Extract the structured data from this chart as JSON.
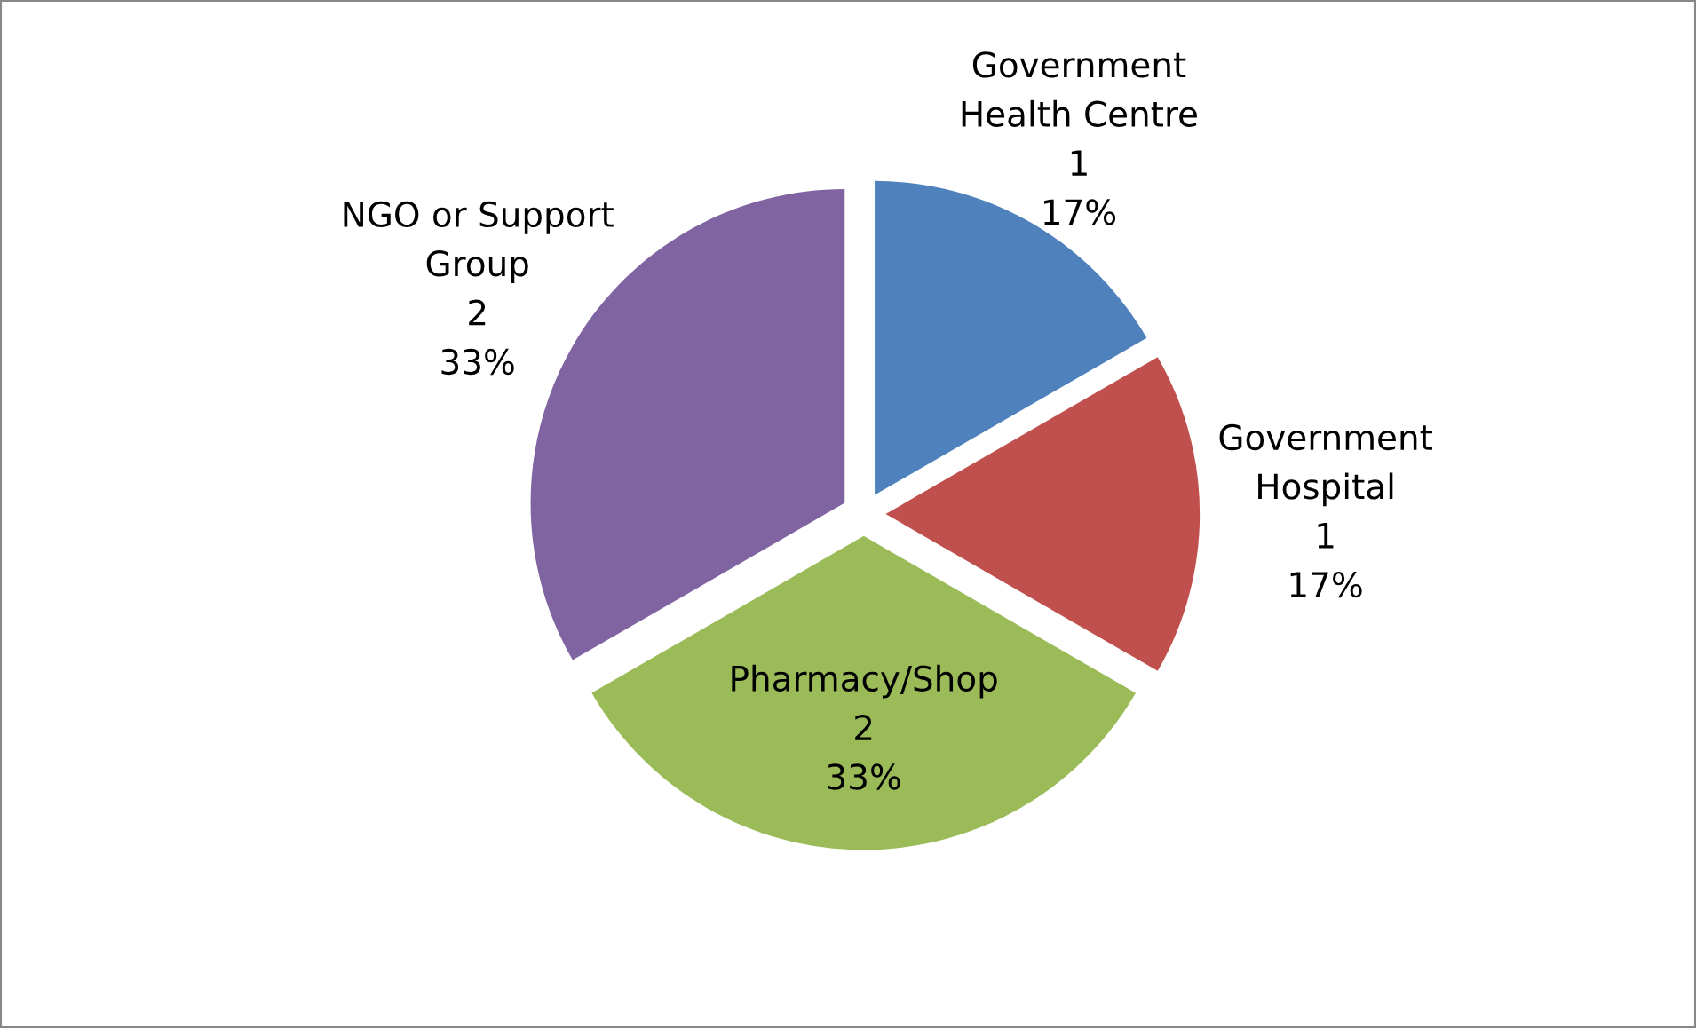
{
  "chart_data": {
    "type": "pie",
    "categories": [
      "Government\nHealth Centre",
      "Government\nHospital",
      "Pharmacy/Shop",
      "NGO or Support\nGroup"
    ],
    "values": [
      1,
      1,
      2,
      2
    ],
    "value_labels": [
      "1\n17%",
      "1\n17%",
      "2\n33%",
      "2\n33%"
    ],
    "colors": [
      "#4f81bd",
      "#c0504d",
      "#9bbb59",
      "#8064a2"
    ]
  }
}
